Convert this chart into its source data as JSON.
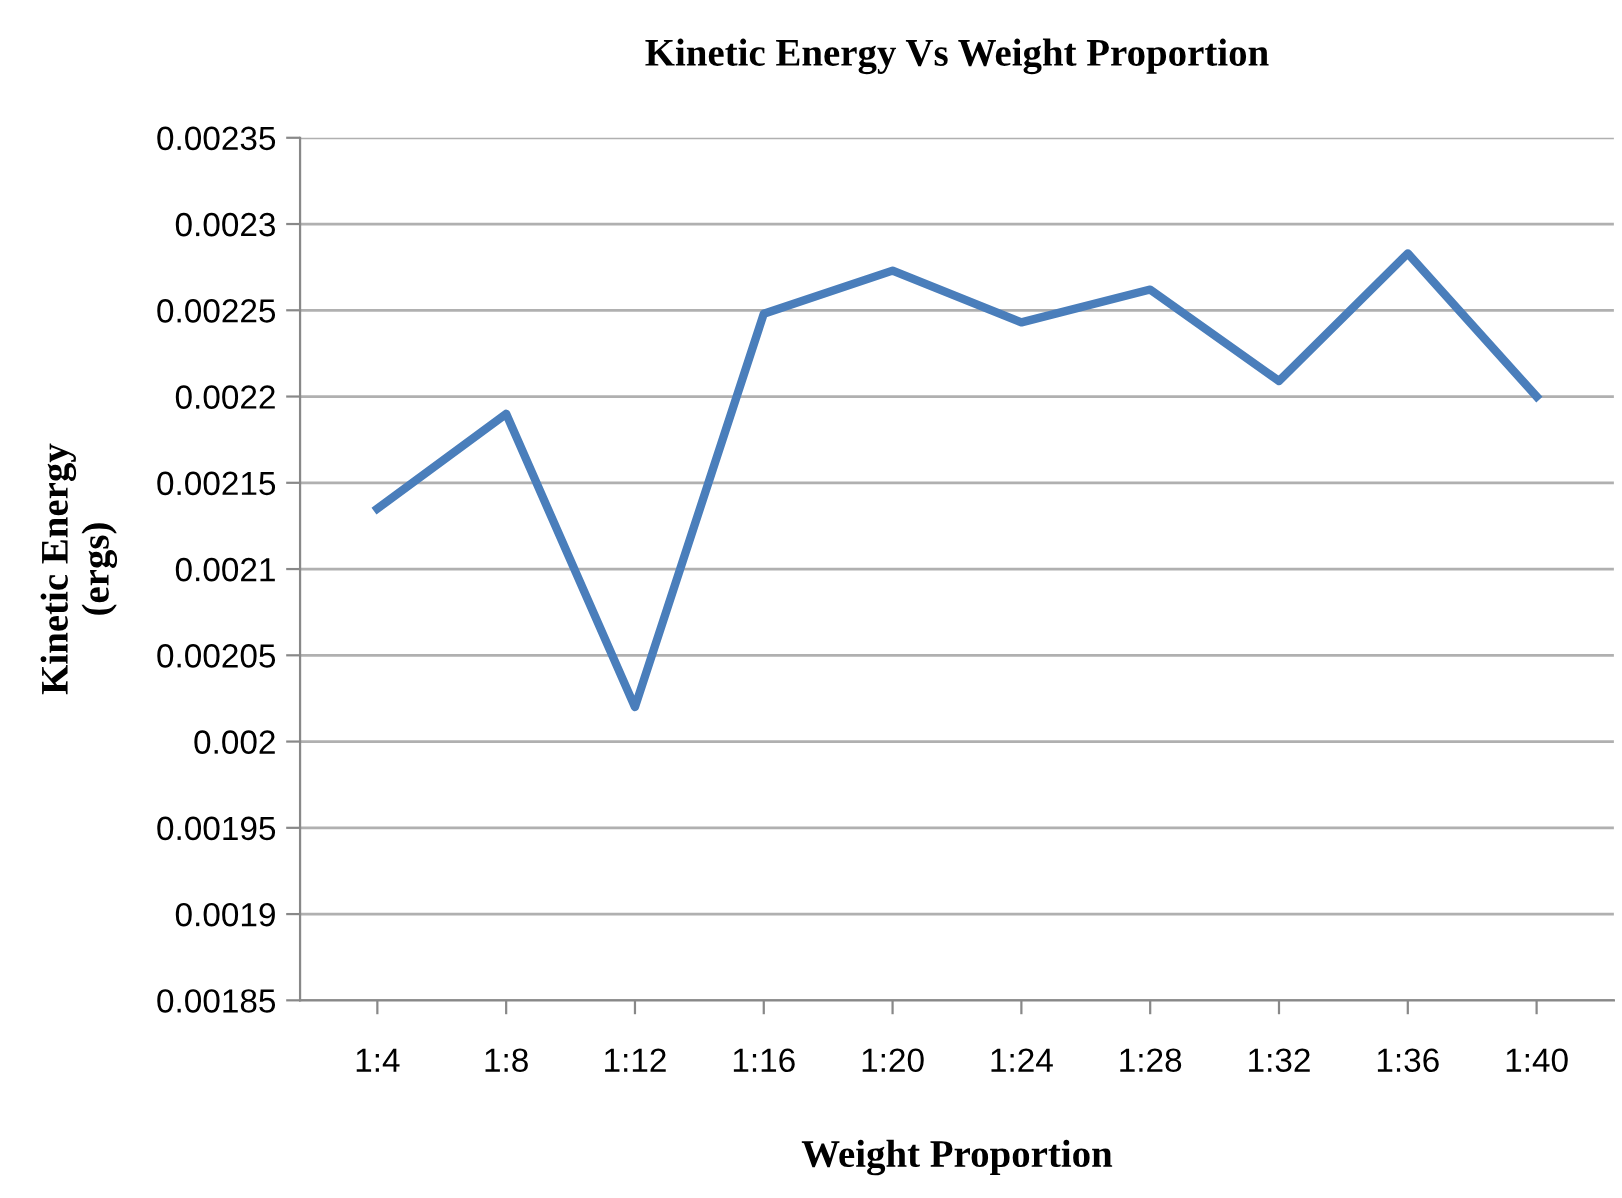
{
  "chart_data": {
    "type": "line",
    "title": "Kinetic Energy Vs Weight Proportion",
    "xlabel": "Weight Proportion",
    "ylabel": "Kinetic Energy\n(ergs)",
    "categories": [
      "1:4",
      "1:8",
      "1:12",
      "1:16",
      "1:20",
      "1:24",
      "1:28",
      "1:32",
      "1:36",
      "1:40"
    ],
    "series": [
      {
        "color": "#4a7ebb",
        "values": [
          0.002135,
          0.00219,
          0.00202,
          0.002248,
          0.002273,
          0.002243,
          0.002262,
          0.002209,
          0.002283,
          0.0022
        ]
      }
    ],
    "ylim": [
      0.00185,
      0.00235
    ],
    "yticks": [
      0.00185,
      0.0019,
      0.00195,
      0.002,
      0.00205,
      0.0021,
      0.00215,
      0.0022,
      0.00225,
      0.0023,
      0.00235
    ],
    "grid": "y",
    "legend": false,
    "marker": "none",
    "line_style": "solid"
  }
}
